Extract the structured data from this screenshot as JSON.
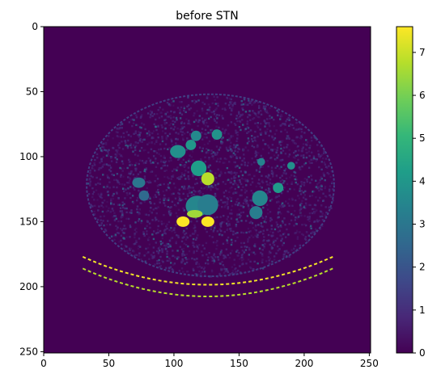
{
  "chart_data": {
    "type": "heatmap",
    "title": "before STN",
    "xlabel": "",
    "ylabel": "",
    "xlim": [
      0,
      251
    ],
    "ylim": [
      251,
      0
    ],
    "xticks": [
      0,
      50,
      100,
      150,
      200,
      250
    ],
    "yticks": [
      0,
      50,
      100,
      150,
      200,
      250
    ],
    "colormap": "viridis",
    "colorbar": {
      "range": [
        0,
        7.6
      ],
      "ticks": [
        0,
        1,
        2,
        3,
        4,
        5,
        6,
        7
      ]
    },
    "colors": {
      "background": "#440154",
      "viridis_stops": [
        "#440154",
        "#482878",
        "#3e4989",
        "#31688e",
        "#26828e",
        "#1f9e89",
        "#35b779",
        "#6ece58",
        "#b5de2b",
        "#fde725"
      ]
    },
    "image_content": {
      "description_omitted": true,
      "regions": [
        {
          "kind": "body-outline",
          "cx": 128,
          "cy": 122,
          "rx": 95,
          "ry": 70,
          "value": 0.9
        },
        {
          "kind": "organ",
          "cx": 119,
          "cy": 109,
          "rx": 6,
          "ry": 6,
          "value": 4.2
        },
        {
          "kind": "organ",
          "cx": 103,
          "cy": 96,
          "rx": 6,
          "ry": 5,
          "value": 3.8
        },
        {
          "kind": "organ",
          "cx": 113,
          "cy": 91,
          "rx": 4,
          "ry": 4,
          "value": 4.0
        },
        {
          "kind": "organ",
          "cx": 117,
          "cy": 84,
          "rx": 4,
          "ry": 4,
          "value": 3.6
        },
        {
          "kind": "organ",
          "cx": 133,
          "cy": 83,
          "rx": 4,
          "ry": 4,
          "value": 3.9
        },
        {
          "kind": "organ",
          "cx": 126,
          "cy": 117,
          "rx": 5,
          "ry": 5,
          "value": 6.8
        },
        {
          "kind": "organ",
          "cx": 118,
          "cy": 138,
          "rx": 9,
          "ry": 8,
          "value": 3.5
        },
        {
          "kind": "organ",
          "cx": 126,
          "cy": 137,
          "rx": 8,
          "ry": 8,
          "value": 3.2
        },
        {
          "kind": "organ",
          "cx": 73,
          "cy": 120,
          "rx": 5,
          "ry": 4,
          "value": 3.0
        },
        {
          "kind": "organ",
          "cx": 77,
          "cy": 130,
          "rx": 4,
          "ry": 4,
          "value": 2.6
        },
        {
          "kind": "organ",
          "cx": 166,
          "cy": 132,
          "rx": 6,
          "ry": 6,
          "value": 3.5
        },
        {
          "kind": "organ",
          "cx": 163,
          "cy": 143,
          "rx": 5,
          "ry": 5,
          "value": 3.2
        },
        {
          "kind": "organ",
          "cx": 180,
          "cy": 124,
          "rx": 4,
          "ry": 4,
          "value": 4.1
        },
        {
          "kind": "organ",
          "cx": 190,
          "cy": 107,
          "rx": 3,
          "ry": 3,
          "value": 3.8
        },
        {
          "kind": "organ",
          "cx": 167,
          "cy": 104,
          "rx": 3,
          "ry": 3,
          "value": 3.4
        },
        {
          "kind": "bone",
          "cx": 107,
          "cy": 150,
          "rx": 5,
          "ry": 4,
          "value": 7.6
        },
        {
          "kind": "bone",
          "cx": 126,
          "cy": 150,
          "rx": 5,
          "ry": 4,
          "value": 7.6
        },
        {
          "kind": "bone",
          "cx": 116,
          "cy": 144,
          "rx": 6,
          "ry": 3,
          "value": 6.5
        }
      ]
    }
  }
}
